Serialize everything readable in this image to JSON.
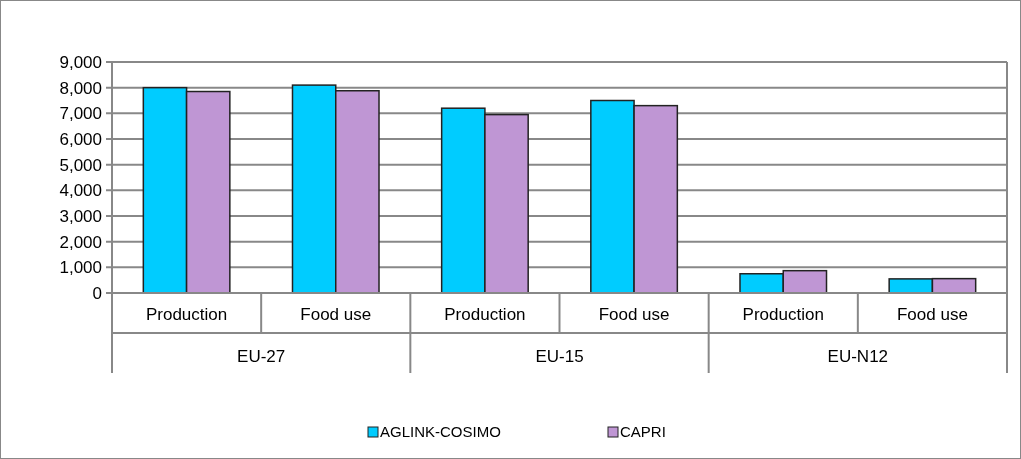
{
  "chart_data": {
    "type": "bar",
    "categories": [
      "Production",
      "Food use",
      "Production",
      "Food use",
      "Production",
      "Food use"
    ],
    "annotations": [
      "EU-27",
      "EU-15",
      "EU-N12"
    ],
    "series": [
      {
        "name": "AGLINK-COSIMO",
        "color": "#00ccff",
        "values": [
          8000,
          8100,
          7200,
          7500,
          750,
          550
        ]
      },
      {
        "name": "CAPRI",
        "color": "#bf96d4",
        "values": [
          7850,
          7880,
          6950,
          7300,
          870,
          560
        ]
      }
    ],
    "ylim": [
      0,
      9000
    ],
    "yticks": [
      {
        "value": 0,
        "label": "0"
      },
      {
        "value": 1000,
        "label": "1,000"
      },
      {
        "value": 2000,
        "label": "2,000"
      },
      {
        "value": 3000,
        "label": "3,000"
      },
      {
        "value": 4000,
        "label": "4,000"
      },
      {
        "value": 5000,
        "label": "5,000"
      },
      {
        "value": 6000,
        "label": "6,000"
      },
      {
        "value": 7000,
        "label": "7,000"
      },
      {
        "value": 8000,
        "label": "8,000"
      },
      {
        "value": 9000,
        "label": "9,000"
      }
    ],
    "grid": "y",
    "legend": "bottom"
  }
}
